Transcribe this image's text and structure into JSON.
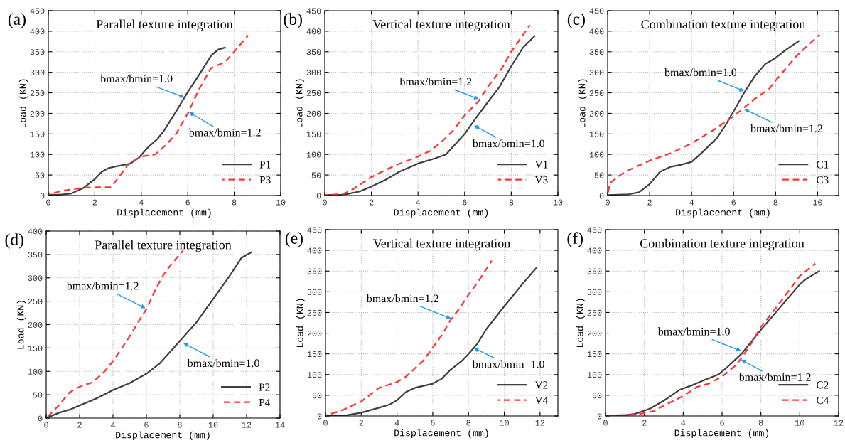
{
  "chart_data": [
    {
      "type": "line",
      "title": "Parallel texture integration",
      "xlabel": "Displacement (mm)",
      "ylabel": "Load (KN)",
      "xlim": [
        0,
        10
      ],
      "xticks": [
        0,
        2,
        4,
        6,
        8,
        10
      ],
      "ylim": [
        0,
        450
      ],
      "yticks": [
        0,
        50,
        100,
        150,
        200,
        250,
        300,
        350,
        400,
        450
      ],
      "grid": true,
      "legend": "bottom right",
      "series": [
        {
          "name": "P1",
          "color": "#404040",
          "line_style": "solid",
          "x": [
            0,
            0.5,
            1,
            1.5,
            2,
            2.3,
            2.6,
            3,
            3.5,
            3.9,
            4.3,
            4.7,
            5,
            5.5,
            6,
            6.5,
            7,
            7.3,
            7.6
          ],
          "values": [
            2,
            2,
            5,
            18,
            40,
            58,
            67,
            72,
            77,
            92,
            118,
            138,
            160,
            205,
            252,
            295,
            340,
            355,
            360
          ]
        },
        {
          "name": "P3",
          "color": "#ff3333",
          "line_style": "dashed",
          "x": [
            0,
            0.5,
            1,
            1.5,
            2,
            2.7,
            3.1,
            3.5,
            4,
            4.6,
            5,
            5.5,
            6,
            6.5,
            7,
            7.6,
            8,
            8.6
          ],
          "values": [
            3,
            10,
            15,
            19,
            20,
            20,
            50,
            80,
            95,
            100,
            120,
            150,
            200,
            260,
            310,
            325,
            350,
            390
          ]
        }
      ],
      "annotations": [
        "(a)",
        {
          "text": "bmax/bmin=1.0",
          "x": 5.85,
          "y": 239
        },
        {
          "text": "bmax/bmin=1.2",
          "x": 6.05,
          "y": 203
        }
      ]
    },
    {
      "type": "line",
      "title": "Vertical texture integration",
      "xlabel": "Displacement (mm)",
      "ylabel": "Load (KN)",
      "xlim": [
        0,
        10
      ],
      "xticks": [
        0,
        2,
        4,
        6,
        8,
        10
      ],
      "ylim": [
        0,
        450
      ],
      "yticks": [
        0,
        50,
        100,
        150,
        200,
        250,
        300,
        350,
        400,
        450
      ],
      "grid": true,
      "legend": "bottom right",
      "series": [
        {
          "name": "V1",
          "color": "#404040",
          "line_style": "solid",
          "x": [
            0,
            0.7,
            1,
            1.5,
            2,
            2.6,
            3.2,
            4,
            4.7,
            5.2,
            5.6,
            6,
            6.5,
            7,
            7.5,
            8,
            8.5,
            9
          ],
          "values": [
            1,
            2,
            4,
            10,
            22,
            38,
            58,
            78,
            90,
            100,
            125,
            150,
            190,
            228,
            265,
            315,
            360,
            388
          ]
        },
        {
          "name": "V3",
          "color": "#ff3333",
          "line_style": "dashed",
          "x": [
            0,
            0.8,
            1.2,
            2,
            3,
            4,
            4.5,
            5,
            5.5,
            6,
            6.6,
            7,
            7.6,
            8,
            8.8
          ],
          "values": [
            1,
            4,
            15,
            45,
            73,
            95,
            108,
            130,
            158,
            195,
            230,
            265,
            310,
            350,
            415
          ]
        }
      ],
      "annotations": [
        "(b)",
        {
          "text": "bmax/bmin=1.2",
          "x": 6.6,
          "y": 235
        },
        {
          "text": "bmax/bmin=1.0",
          "x": 6.4,
          "y": 171
        }
      ]
    },
    {
      "type": "line",
      "title": "Combination texture integration",
      "xlabel": "Displacement (mm)",
      "ylabel": "Load (KN)",
      "xlim": [
        0,
        11
      ],
      "xticks": [
        0,
        2,
        4,
        6,
        8,
        10
      ],
      "ylim": [
        0,
        450
      ],
      "yticks": [
        0,
        50,
        100,
        150,
        200,
        250,
        300,
        350,
        400,
        450
      ],
      "grid": true,
      "legend": "bottom right",
      "series": [
        {
          "name": "C1",
          "color": "#404040",
          "line_style": "solid",
          "x": [
            0,
            1,
            1.5,
            2,
            2.5,
            3,
            3.5,
            4,
            4.5,
            4.8,
            5.2,
            5.6,
            6,
            6.5,
            7,
            7.5,
            8,
            8.5,
            9.1
          ],
          "values": [
            1,
            3,
            8,
            28,
            58,
            70,
            75,
            82,
            105,
            120,
            140,
            170,
            205,
            250,
            290,
            320,
            335,
            355,
            376
          ]
        },
        {
          "name": "C3",
          "color": "#ff3333",
          "line_style": "dashed",
          "x": [
            0,
            0.1,
            0.6,
            1,
            2,
            3,
            4,
            5,
            6,
            7,
            7.7,
            8,
            9,
            10.1
          ],
          "values": [
            0,
            30,
            50,
            62,
            85,
            103,
            127,
            158,
            193,
            235,
            260,
            280,
            340,
            392
          ]
        }
      ],
      "annotations": [
        "(c)",
        {
          "text": "bmax/bmin=1.0",
          "x": 6.5,
          "y": 254
        },
        {
          "text": "bmax/bmin=1.2",
          "x": 6.5,
          "y": 211
        }
      ]
    },
    {
      "type": "line",
      "title": "Parallel texture integration",
      "xlabel": "Displacement (mm)",
      "ylabel": "Load (KN)",
      "xlim": [
        0,
        14
      ],
      "xticks": [
        0,
        2,
        4,
        6,
        8,
        10,
        12,
        14
      ],
      "ylim": [
        0,
        400
      ],
      "yticks": [
        0,
        50,
        100,
        150,
        200,
        250,
        300,
        350,
        400
      ],
      "grid": true,
      "legend": "bottom right",
      "series": [
        {
          "name": "P2",
          "color": "#404040",
          "line_style": "solid",
          "x": [
            0,
            0.8,
            1.4,
            2,
            3,
            4,
            5,
            6,
            6.8,
            7.5,
            8,
            9,
            10,
            11,
            11.7,
            12.3
          ],
          "values": [
            0,
            12,
            18,
            27,
            42,
            60,
            75,
            95,
            117,
            145,
            165,
            205,
            255,
            305,
            343,
            355
          ]
        },
        {
          "name": "P4",
          "color": "#ff3333",
          "line_style": "dashed",
          "x": [
            0,
            0.7,
            1.4,
            2,
            2.8,
            3.5,
            4,
            5,
            5.5,
            6,
            6.5,
            7,
            7.5,
            8.2
          ],
          "values": [
            0,
            25,
            55,
            67,
            77,
            100,
            122,
            175,
            205,
            233,
            272,
            305,
            330,
            358
          ]
        }
      ],
      "annotations": [
        "(d)",
        {
          "text": "bmax/bmin=1.2",
          "x": 5.95,
          "y": 235
        },
        {
          "text": "bmax/bmin=1.0",
          "x": 8.2,
          "y": 161
        }
      ]
    },
    {
      "type": "line",
      "title": "Vertical texture integration",
      "xlabel": "Displacement (mm)",
      "ylabel": "Load (KN)",
      "xlim": [
        0,
        13
      ],
      "xticks": [
        0,
        2,
        4,
        6,
        8,
        10,
        12
      ],
      "ylim": [
        0,
        450
      ],
      "yticks": [
        0,
        50,
        100,
        150,
        200,
        250,
        300,
        350,
        400,
        450
      ],
      "grid": true,
      "legend": "bottom right",
      "series": [
        {
          "name": "V2",
          "color": "#404040",
          "line_style": "solid",
          "x": [
            0,
            1.2,
            2,
            3,
            3.6,
            4,
            4.5,
            5,
            6,
            6.5,
            7,
            7.6,
            8,
            8.5,
            9,
            10,
            11,
            11.8
          ],
          "values": [
            1,
            2,
            8,
            20,
            28,
            38,
            58,
            68,
            78,
            90,
            112,
            132,
            150,
            175,
            210,
            265,
            318,
            358
          ]
        },
        {
          "name": "V4",
          "color": "#ff3333",
          "line_style": "dashed",
          "x": [
            0,
            1,
            2,
            3,
            4,
            4.5,
            5,
            5.5,
            6,
            6.5,
            7,
            7.5,
            8,
            8.5,
            9.3
          ],
          "values": [
            1,
            15,
            35,
            68,
            82,
            95,
            115,
            135,
            165,
            195,
            232,
            260,
            293,
            322,
            375
          ]
        }
      ],
      "annotations": [
        "(e)",
        {
          "text": "bmax/bmin=1.2",
          "x": 7.03,
          "y": 235
        },
        {
          "text": "bmax/bmin=1.0",
          "x": 8.3,
          "y": 164
        }
      ]
    },
    {
      "type": "line",
      "title": "Combination texture integration",
      "xlabel": "Displacement (mm)",
      "ylabel": "Load (KN)",
      "xlim": [
        0,
        12
      ],
      "xticks": [
        0,
        2,
        4,
        6,
        8,
        10,
        12
      ],
      "ylim": [
        0,
        450
      ],
      "yticks": [
        0,
        50,
        100,
        150,
        200,
        250,
        300,
        350,
        400,
        450
      ],
      "grid": true,
      "legend": "bottom right",
      "series": [
        {
          "name": "C2",
          "color": "#404040",
          "line_style": "solid",
          "x": [
            0,
            1,
            1.5,
            2,
            2.3,
            3,
            3.5,
            3.8,
            4.5,
            5,
            5.8,
            6.2,
            7,
            8,
            9,
            10,
            10.3,
            11
          ],
          "values": [
            1,
            2,
            5,
            13,
            18,
            37,
            53,
            63,
            75,
            85,
            100,
            115,
            150,
            208,
            263,
            318,
            330,
            350
          ]
        },
        {
          "name": "C4",
          "color": "#ff3333",
          "line_style": "dashed",
          "x": [
            0,
            1.5,
            2,
            2.5,
            3,
            4,
            4.7,
            5.3,
            6,
            6.7,
            7,
            7.5,
            8,
            9,
            10,
            10.8
          ],
          "values": [
            1,
            3,
            7,
            12,
            25,
            48,
            70,
            78,
            95,
            122,
            140,
            175,
            215,
            275,
            338,
            368
          ]
        }
      ],
      "annotations": [
        "(f)",
        {
          "text": "bmax/bmin=1.0",
          "x": 6.98,
          "y": 157
        },
        {
          "text": "bmax/bmin=1.2",
          "x": 6.98,
          "y": 136
        }
      ]
    }
  ]
}
